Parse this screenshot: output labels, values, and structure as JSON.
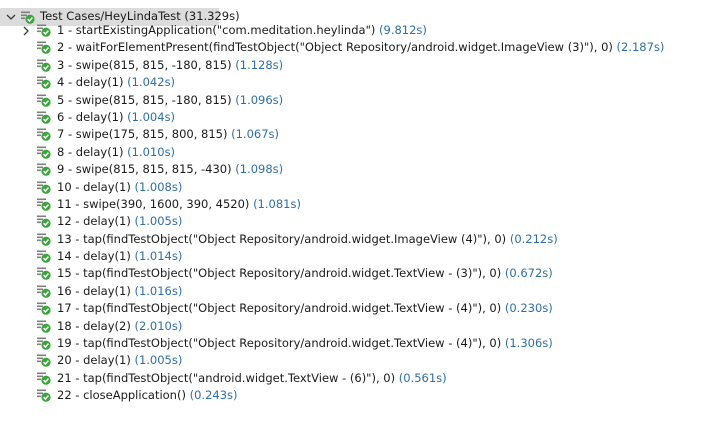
{
  "root": {
    "label": "Test Cases/HeyLindaTest",
    "duration": "(31.329s)",
    "expanded": true,
    "status": "passed",
    "status_icon": "passed-check-icon"
  },
  "colors": {
    "pass_green": "#3aa53a",
    "icon_bar": "#7f7f7f",
    "duration_blue": "#2f6fa3",
    "root_highlight": "#dcdcdc"
  },
  "steps": [
    {
      "label": "1 - startExistingApplication(\"com.meditation.heylinda\")",
      "duration": "(9.812s)",
      "expandable": true
    },
    {
      "label": "2 - waitForElementPresent(findTestObject(\"Object Repository/android.widget.ImageView (3)\"), 0)",
      "duration": "(2.187s)",
      "expandable": false
    },
    {
      "label": "3 - swipe(815, 815, -180, 815)",
      "duration": "(1.128s)",
      "expandable": false
    },
    {
      "label": "4 - delay(1)",
      "duration": "(1.042s)",
      "expandable": false
    },
    {
      "label": "5 - swipe(815, 815, -180, 815)",
      "duration": "(1.096s)",
      "expandable": false
    },
    {
      "label": "6 - delay(1)",
      "duration": "(1.004s)",
      "expandable": false
    },
    {
      "label": "7 - swipe(175, 815, 800, 815)",
      "duration": "(1.067s)",
      "expandable": false
    },
    {
      "label": "8 - delay(1)",
      "duration": "(1.010s)",
      "expandable": false
    },
    {
      "label": "9 - swipe(815, 815, 815, -430)",
      "duration": "(1.098s)",
      "expandable": false
    },
    {
      "label": "10 - delay(1)",
      "duration": "(1.008s)",
      "expandable": false
    },
    {
      "label": "11 - swipe(390, 1600, 390, 4520)",
      "duration": "(1.081s)",
      "expandable": false
    },
    {
      "label": "12 - delay(1)",
      "duration": "(1.005s)",
      "expandable": false
    },
    {
      "label": "13 - tap(findTestObject(\"Object Repository/android.widget.ImageView (4)\"), 0)",
      "duration": "(0.212s)",
      "expandable": false
    },
    {
      "label": "14 - delay(1)",
      "duration": "(1.014s)",
      "expandable": false
    },
    {
      "label": "15 - tap(findTestObject(\"Object Repository/android.widget.TextView - (3)\"), 0)",
      "duration": "(0.672s)",
      "expandable": false
    },
    {
      "label": "16 - delay(1)",
      "duration": "(1.016s)",
      "expandable": false
    },
    {
      "label": "17 - tap(findTestObject(\"Object Repository/android.widget.TextView - (4)\"), 0)",
      "duration": "(0.230s)",
      "expandable": false
    },
    {
      "label": "18 - delay(2)",
      "duration": "(2.010s)",
      "expandable": false
    },
    {
      "label": "19 - tap(findTestObject(\"Object Repository/android.widget.TextView - (4)\"), 0)",
      "duration": "(1.306s)",
      "expandable": false
    },
    {
      "label": "20 - delay(1)",
      "duration": "(1.005s)",
      "expandable": false
    },
    {
      "label": "21 - tap(findTestObject(\"android.widget.TextView - (6)\"), 0)",
      "duration": "(0.561s)",
      "expandable": false
    },
    {
      "label": "22 - closeApplication()",
      "duration": "(0.243s)",
      "expandable": false
    }
  ]
}
